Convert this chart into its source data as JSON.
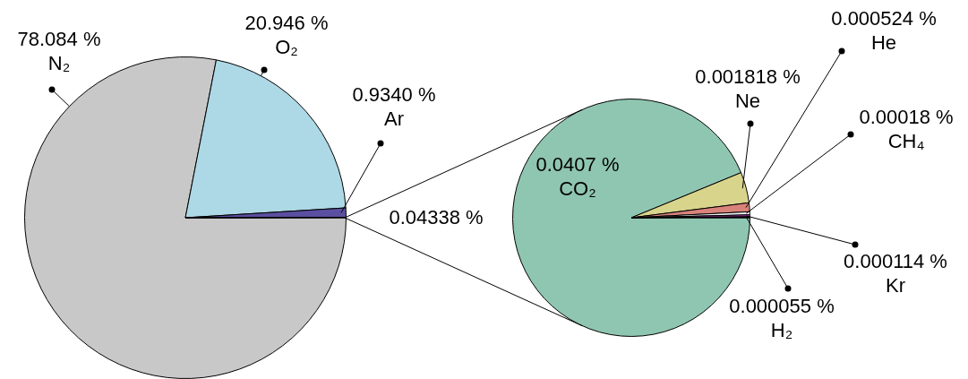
{
  "chart_data": [
    {
      "type": "pie",
      "categories": [
        "N₂",
        "O₂",
        "Ar",
        null
      ],
      "values": [
        78.084,
        20.946,
        0.934,
        0.04338
      ],
      "colors": [
        "#c8c8c8",
        "#add8e6",
        "#5a4fa0",
        "#000000"
      ],
      "value_labels": [
        "78.084 %",
        "20.946 %",
        "0.9340 %",
        "0.04338 %"
      ]
    },
    {
      "type": "pie",
      "categories": [
        "CO₂",
        "Ne",
        "He",
        "CH₄",
        "Kr",
        "H₂"
      ],
      "values": [
        0.0407,
        0.001818,
        0.000524,
        0.00018,
        0.000114,
        5.5e-05
      ],
      "colors": [
        "#8fc6b2",
        "#d8d48c",
        "#d9827a",
        "#eeeeee",
        "#c03cc8",
        "#000000"
      ],
      "value_labels": [
        "0.0407 %",
        "0.001818 %",
        "0.000524 %",
        "0.00018 %",
        "0.000114 %",
        "0.000055 %"
      ]
    }
  ]
}
